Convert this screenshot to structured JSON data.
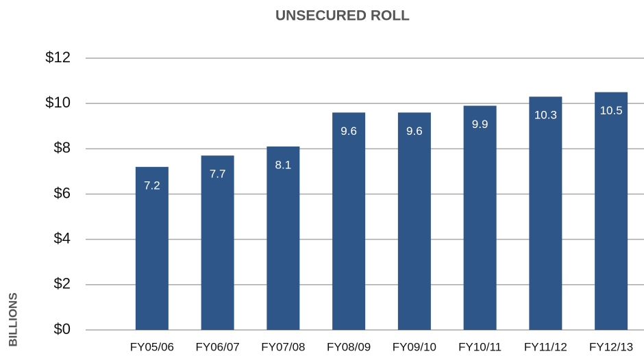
{
  "chart_data": {
    "type": "bar",
    "title": "UNSECURED ROLL",
    "y_label": "BILLIONS",
    "categories": [
      "FY05/06",
      "FY06/07",
      "FY07/08",
      "FY08/09",
      "FY09/10",
      "FY10/11",
      "FY11/12",
      "FY12/13"
    ],
    "values": [
      7.2,
      7.7,
      8.1,
      9.6,
      9.6,
      9.9,
      10.3,
      10.5
    ],
    "color": "#2f5689",
    "ylim": [
      0,
      12
    ],
    "yticks": [
      {
        "value": 0,
        "label": "$0"
      },
      {
        "value": 2,
        "label": "$2"
      },
      {
        "value": 4,
        "label": "$4"
      },
      {
        "value": 6,
        "label": "$6"
      },
      {
        "value": 8,
        "label": "$8"
      },
      {
        "value": 10,
        "label": "$10"
      },
      {
        "value": 12,
        "label": "$12"
      }
    ],
    "grid": true
  }
}
